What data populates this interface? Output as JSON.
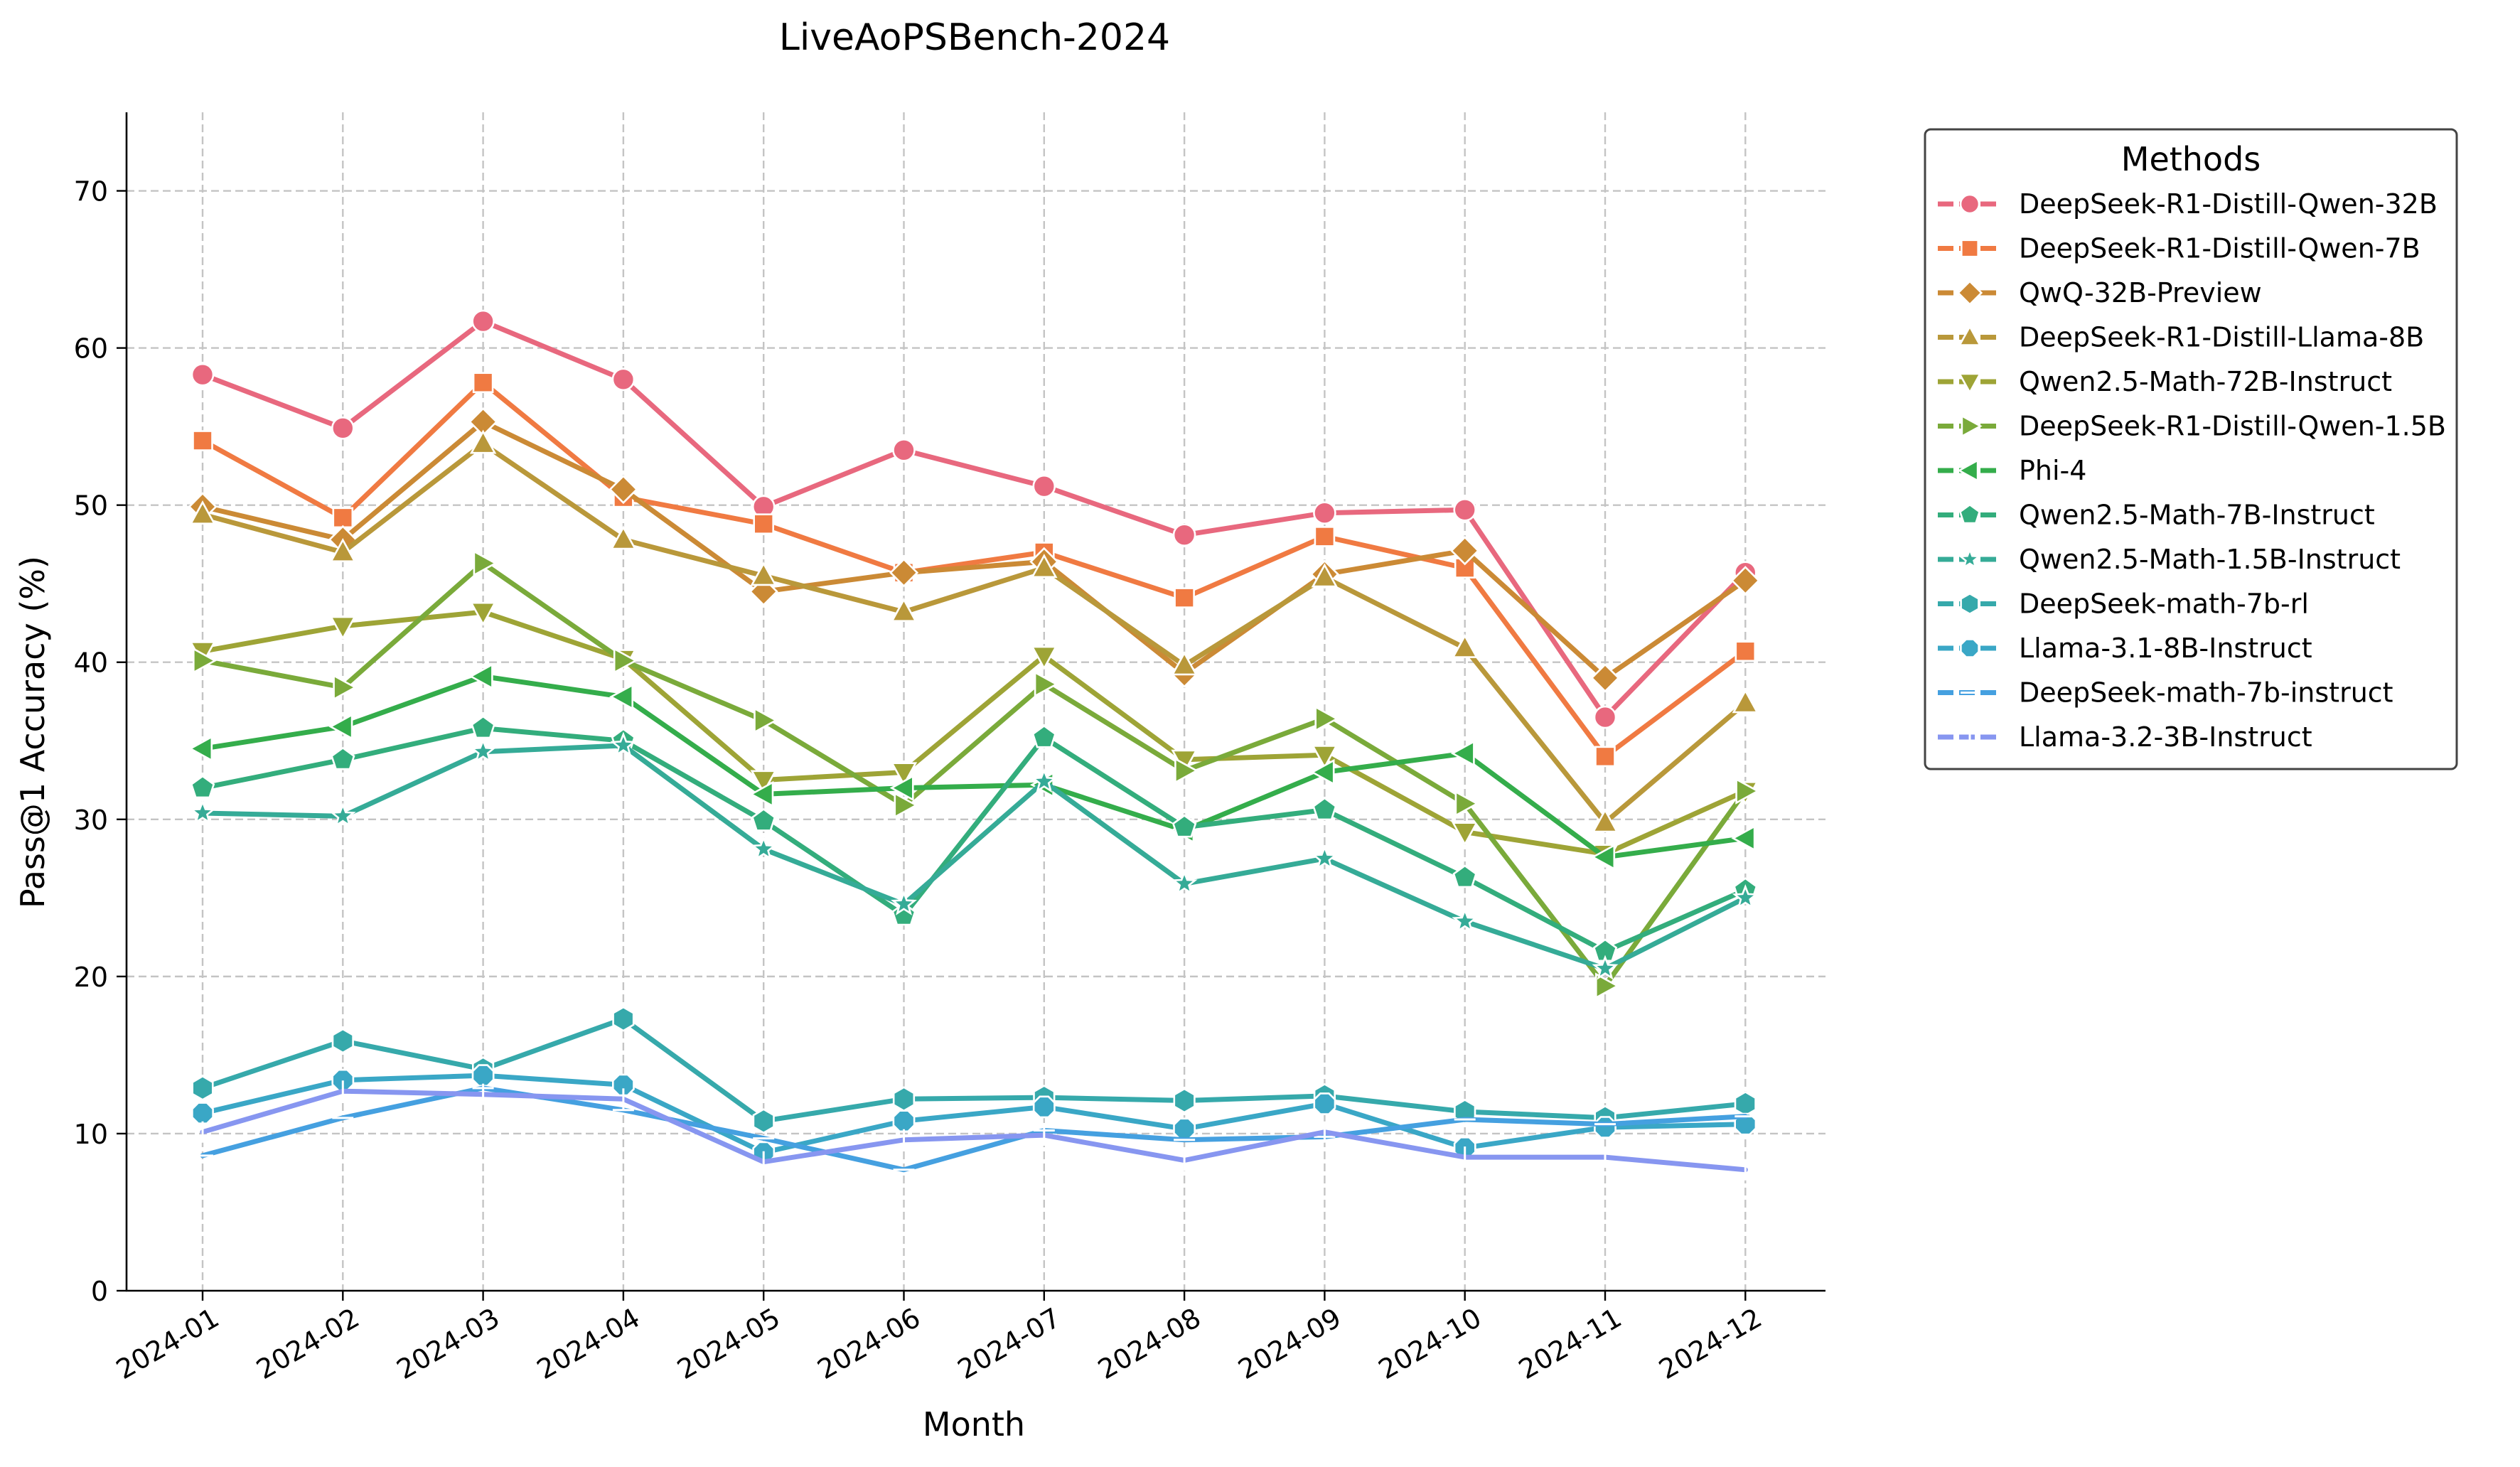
{
  "chart_data": {
    "type": "line",
    "title": "LiveAoPSBench-2024",
    "xlabel": "Month",
    "ylabel": "Pass@1 Accuracy (%)",
    "ylim": [
      0,
      75
    ],
    "yticks": [
      0,
      10,
      20,
      30,
      40,
      50,
      60,
      70
    ],
    "grid": true,
    "legend_title": "Methods",
    "legend_position": "outside-right",
    "categories": [
      "2024-01",
      "2024-02",
      "2024-03",
      "2024-04",
      "2024-05",
      "2024-06",
      "2024-07",
      "2024-08",
      "2024-09",
      "2024-10",
      "2024-11",
      "2024-12"
    ],
    "series": [
      {
        "name": "DeepSeek-R1-Distill-Qwen-32B",
        "color": "#e8687e",
        "marker": "circle",
        "values": [
          58.3,
          54.9,
          61.7,
          58.0,
          49.9,
          53.5,
          51.2,
          48.1,
          49.5,
          49.7,
          36.5,
          45.7
        ]
      },
      {
        "name": "DeepSeek-R1-Distill-Qwen-7B",
        "color": "#f07a42",
        "marker": "square",
        "values": [
          54.1,
          49.2,
          57.8,
          50.5,
          48.8,
          45.7,
          47.0,
          44.1,
          48.0,
          46.0,
          34.0,
          40.7
        ]
      },
      {
        "name": "QwQ-32B-Preview",
        "color": "#cb8a35",
        "marker": "diamond",
        "values": [
          49.9,
          47.8,
          55.3,
          51.0,
          44.5,
          45.7,
          46.4,
          39.3,
          45.6,
          47.1,
          39.0,
          45.2
        ]
      },
      {
        "name": "DeepSeek-R1-Distill-Llama-8B",
        "color": "#b9983a",
        "marker": "triangle-up",
        "values": [
          49.4,
          47.0,
          53.9,
          47.8,
          45.5,
          43.2,
          46.0,
          39.8,
          45.4,
          40.9,
          29.8,
          37.4
        ]
      },
      {
        "name": "Qwen2.5-Math-72B-Instruct",
        "color": "#9ea436",
        "marker": "triangle-down",
        "values": [
          40.7,
          42.3,
          43.2,
          40.2,
          32.5,
          33.0,
          40.4,
          33.8,
          34.1,
          29.2,
          27.8,
          31.8
        ]
      },
      {
        "name": "DeepSeek-R1-Distill-Qwen-1.5B",
        "color": "#7aaa3a",
        "marker": "triangle-right",
        "values": [
          40.1,
          38.4,
          46.3,
          40.1,
          36.3,
          30.9,
          38.6,
          33.1,
          36.4,
          31.0,
          19.4,
          31.8
        ]
      },
      {
        "name": "Phi-4",
        "color": "#34ad4b",
        "marker": "triangle-left",
        "values": [
          34.5,
          35.9,
          39.1,
          37.8,
          31.6,
          32.0,
          32.2,
          29.3,
          33.0,
          34.2,
          27.6,
          28.8
        ]
      },
      {
        "name": "Qwen2.5-Math-7B-Instruct",
        "color": "#33ad7c",
        "marker": "pentagon",
        "values": [
          32.0,
          33.8,
          35.8,
          35.0,
          29.9,
          23.9,
          35.2,
          29.5,
          30.6,
          26.3,
          21.6,
          25.5
        ]
      },
      {
        "name": "Qwen2.5-Math-1.5B-Instruct",
        "color": "#35ab97",
        "marker": "star",
        "values": [
          30.4,
          30.2,
          34.3,
          34.7,
          28.1,
          24.6,
          32.4,
          25.9,
          27.5,
          23.5,
          20.5,
          25.0
        ]
      },
      {
        "name": "DeepSeek-math-7b-rl",
        "color": "#36a9ab",
        "marker": "hexagon",
        "values": [
          12.9,
          15.9,
          14.1,
          17.3,
          10.8,
          12.2,
          12.3,
          12.1,
          12.4,
          11.4,
          11.0,
          11.9
        ]
      },
      {
        "name": "Llama-3.1-8B-Instruct",
        "color": "#3aa7c6",
        "marker": "octagon",
        "values": [
          11.3,
          13.4,
          13.7,
          13.1,
          8.8,
          10.8,
          11.7,
          10.3,
          11.9,
          9.1,
          10.4,
          10.6
        ]
      },
      {
        "name": "DeepSeek-math-7b-instruct",
        "color": "#45a0e0",
        "marker": "hline",
        "values": [
          8.6,
          11.0,
          12.9,
          11.5,
          9.7,
          7.7,
          10.2,
          9.6,
          9.8,
          10.9,
          10.6,
          11.1
        ]
      },
      {
        "name": "Llama-3.2-3B-Instruct",
        "color": "#8796f0",
        "marker": "vline",
        "values": [
          10.1,
          12.7,
          12.5,
          12.2,
          8.2,
          9.6,
          9.9,
          8.3,
          10.1,
          8.5,
          8.5,
          7.7
        ]
      }
    ]
  }
}
